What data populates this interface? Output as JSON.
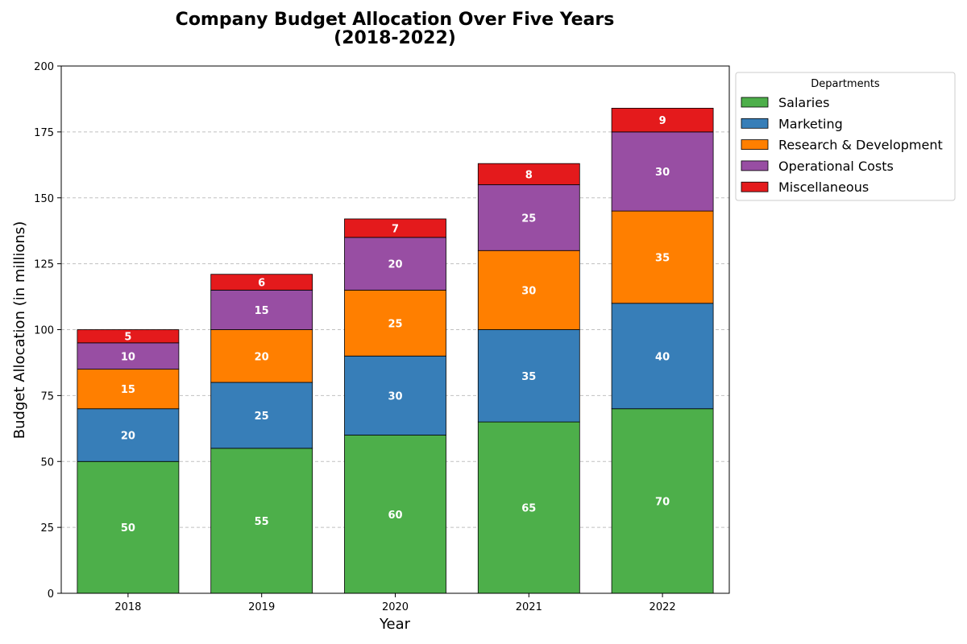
{
  "chart_data": {
    "type": "bar",
    "stacked": true,
    "title_lines": [
      "Company Budget Allocation Over Five Years",
      "(2018-2022)"
    ],
    "xlabel": "Year",
    "ylabel": "Budget Allocation (in millions)",
    "categories": [
      "2018",
      "2019",
      "2020",
      "2021",
      "2022"
    ],
    "ylim": [
      0,
      200
    ],
    "yticks": [
      0,
      25,
      50,
      75,
      100,
      125,
      150,
      175,
      200
    ],
    "grid": "horizontal dashed",
    "legend": {
      "title": "Departments",
      "placement": "outside upper right"
    },
    "series": [
      {
        "name": "Salaries",
        "color": "#4daf4a",
        "values": [
          50,
          55,
          60,
          65,
          70
        ]
      },
      {
        "name": "Marketing",
        "color": "#377eb8",
        "values": [
          20,
          25,
          30,
          35,
          40
        ]
      },
      {
        "name": "Research & Development",
        "color": "#ff7f00",
        "values": [
          15,
          20,
          25,
          30,
          35
        ]
      },
      {
        "name": "Operational Costs",
        "color": "#984ea3",
        "values": [
          10,
          15,
          20,
          25,
          30
        ]
      },
      {
        "name": "Miscellaneous",
        "color": "#e41a1c",
        "values": [
          5,
          6,
          7,
          8,
          9
        ]
      }
    ]
  }
}
